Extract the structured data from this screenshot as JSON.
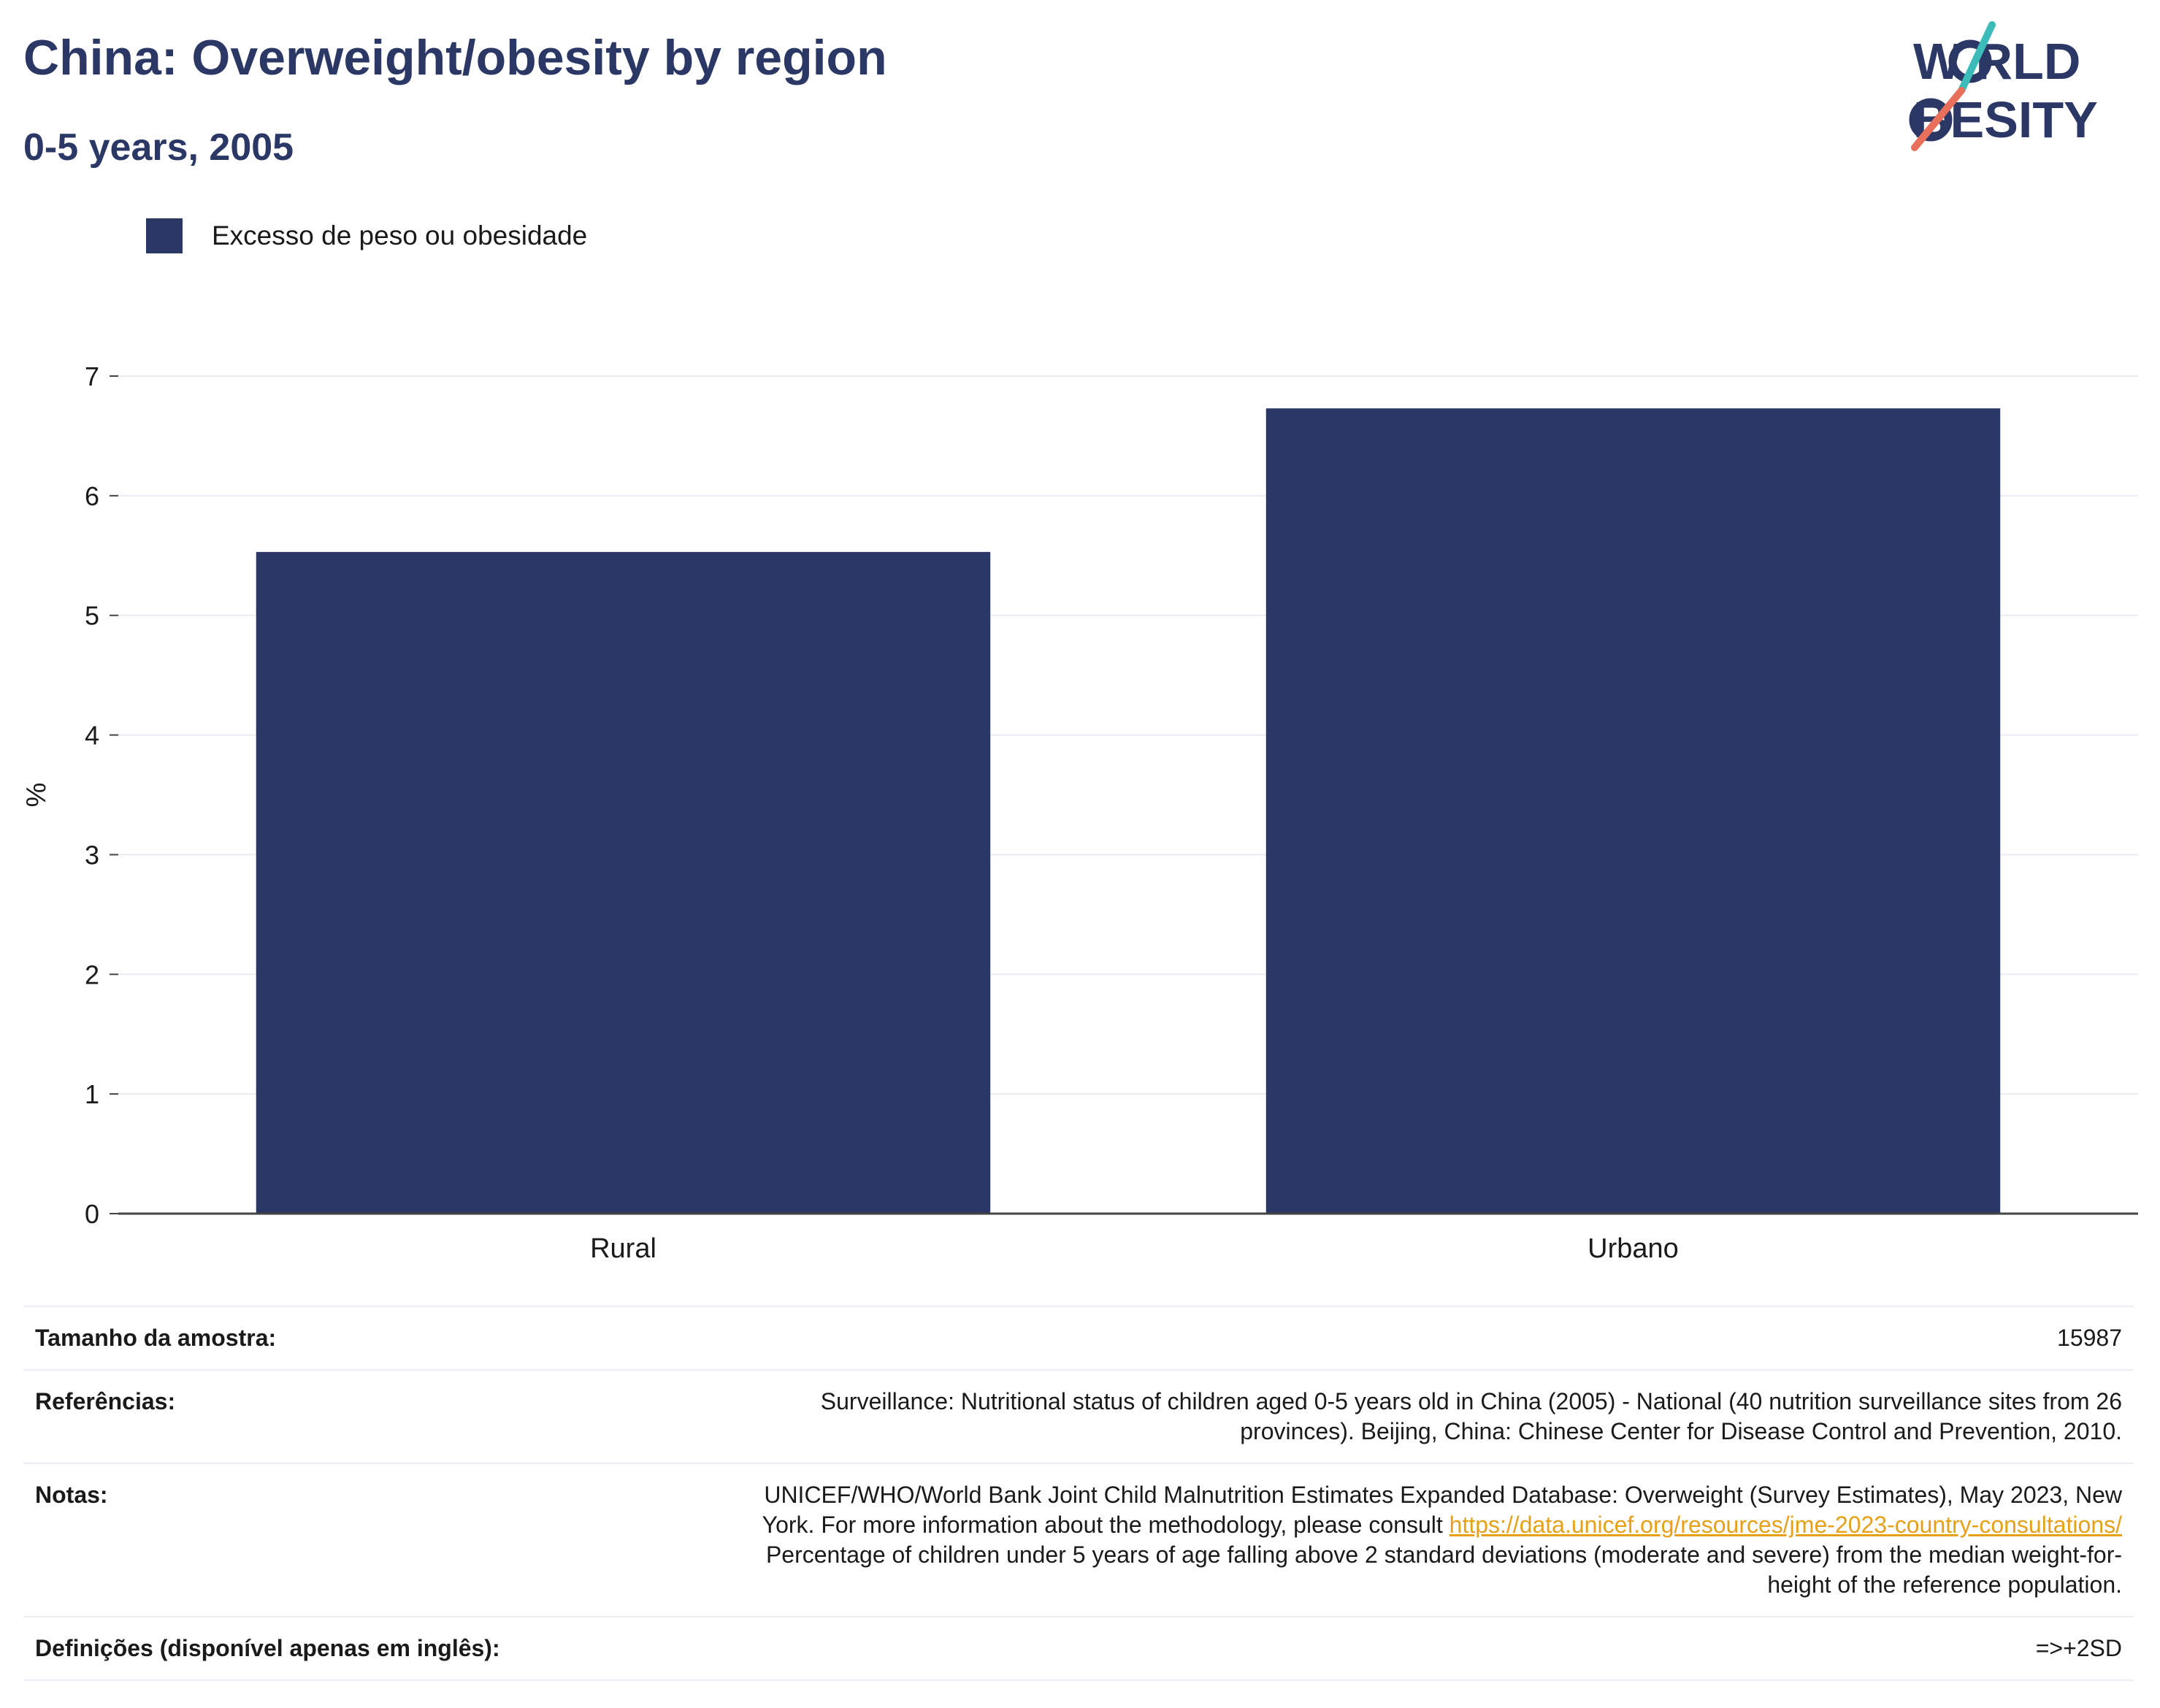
{
  "header": {
    "title": "China: Overweight/obesity by region",
    "subtitle": "0-5 years, 2005"
  },
  "logo": {
    "line1": "W RLD",
    "line2": "BESITY",
    "colors": {
      "text": "#2b3764",
      "slash_top": "#3bbcb8",
      "slash_bottom": "#e8705a"
    }
  },
  "legend": {
    "label": "Excesso de peso ou obesidade",
    "color": "#2b3764"
  },
  "chart_data": {
    "type": "bar",
    "categories": [
      "Rural",
      "Urbano"
    ],
    "series": [
      {
        "name": "Excesso de peso ou obesidade",
        "values": [
          5.53,
          6.73
        ],
        "color": "#2b3764"
      }
    ],
    "ylabel": "%",
    "ylim": [
      0,
      7
    ],
    "yticks": [
      0,
      1,
      2,
      3,
      4,
      5,
      6,
      7
    ],
    "grid": true
  },
  "info": {
    "sample": {
      "label": "Tamanho da amostra:",
      "value": "15987"
    },
    "references": {
      "label": "Referências:",
      "line1": "Surveillance: Nutritional status of children aged 0-5 years old in China (2005) - National (40 nutrition surveillance sites from 26",
      "line2": "provinces). Beijing, China: Chinese Center for Disease Control and Prevention, 2010."
    },
    "notes": {
      "label": "Notas:",
      "line1": "UNICEF/WHO/World Bank Joint Child Malnutrition Estimates Expanded Database: Overweight (Survey Estimates), May 2023, New",
      "line2_prefix": "York. For more information about the methodology, please consult ",
      "link": "https://data.unicef.org/resources/jme-2023-country-consultations/",
      "line3": "Percentage of children under 5 years of age falling above 2 standard deviations (moderate and severe) from the median weight-for-",
      "line4": "height of the reference population."
    },
    "definitions": {
      "label": "Definições (disponível apenas em inglês):",
      "value": "=>+2SD"
    }
  }
}
